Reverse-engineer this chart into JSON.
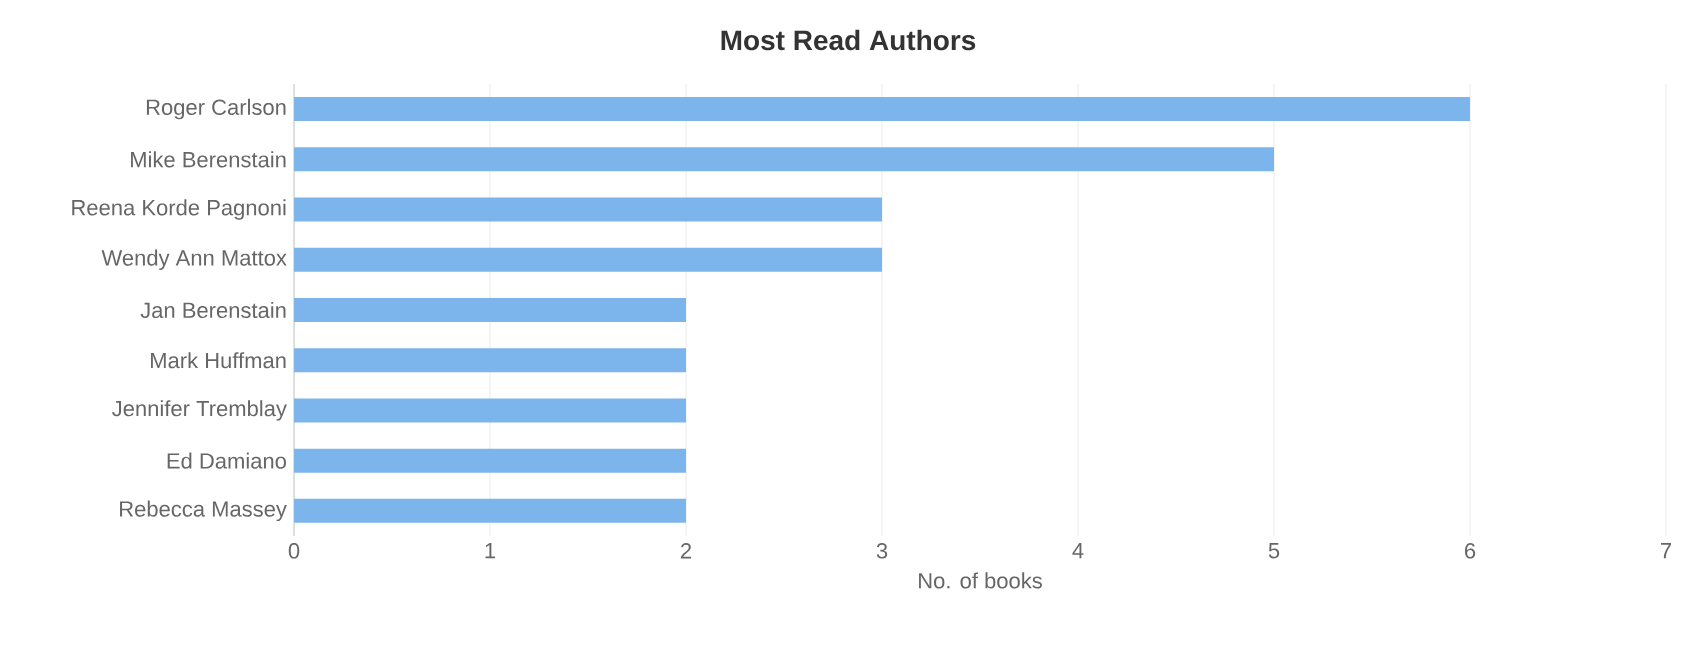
{
  "chart_data": {
    "type": "bar",
    "orientation": "horizontal",
    "title": "Most Read Authors",
    "xlabel": "No. of books",
    "categories": [
      "Roger Carlson",
      "Mike Berenstain",
      "Reena Korde Pagnoni",
      "Wendy Ann Mattox",
      "Jan Berenstain",
      "Mark Huffman",
      "Jennifer Tremblay",
      "Ed Damiano",
      "Rebecca Massey"
    ],
    "values": [
      6,
      5,
      3,
      3,
      2,
      2,
      2,
      2,
      2
    ],
    "color": "#7cb5ec",
    "xlim": [
      0,
      7
    ],
    "xticks": [
      0,
      1,
      2,
      3,
      4,
      5,
      6,
      7
    ],
    "grid": "x"
  }
}
